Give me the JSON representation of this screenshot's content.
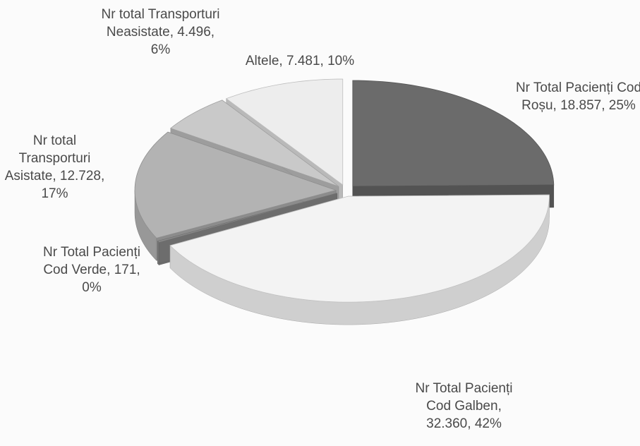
{
  "chart_data": {
    "type": "pie",
    "categories": [
      "Nr Total Pacienți Cod Roșu",
      "Nr Total Pacienți Cod Galben",
      "Nr Total Pacienți Cod Verde",
      "Nr total Transporturi Asistate",
      "Nr total Transporturi Neasistate",
      "Altele"
    ],
    "values": [
      18857,
      32360,
      171,
      12728,
      4496,
      7481
    ],
    "value_labels": [
      "18.857",
      "32.360",
      "171",
      "12.728",
      "4.496",
      "7.481"
    ],
    "percent_labels": [
      "25%",
      "42%",
      "0%",
      "17%",
      "6%",
      "10%"
    ],
    "separator": ", ",
    "colors": [
      "#6b6b6b",
      "#f3f3f3",
      "#8c8c8c",
      "#b3b3b3",
      "#c9c9c9",
      "#ededed"
    ]
  }
}
